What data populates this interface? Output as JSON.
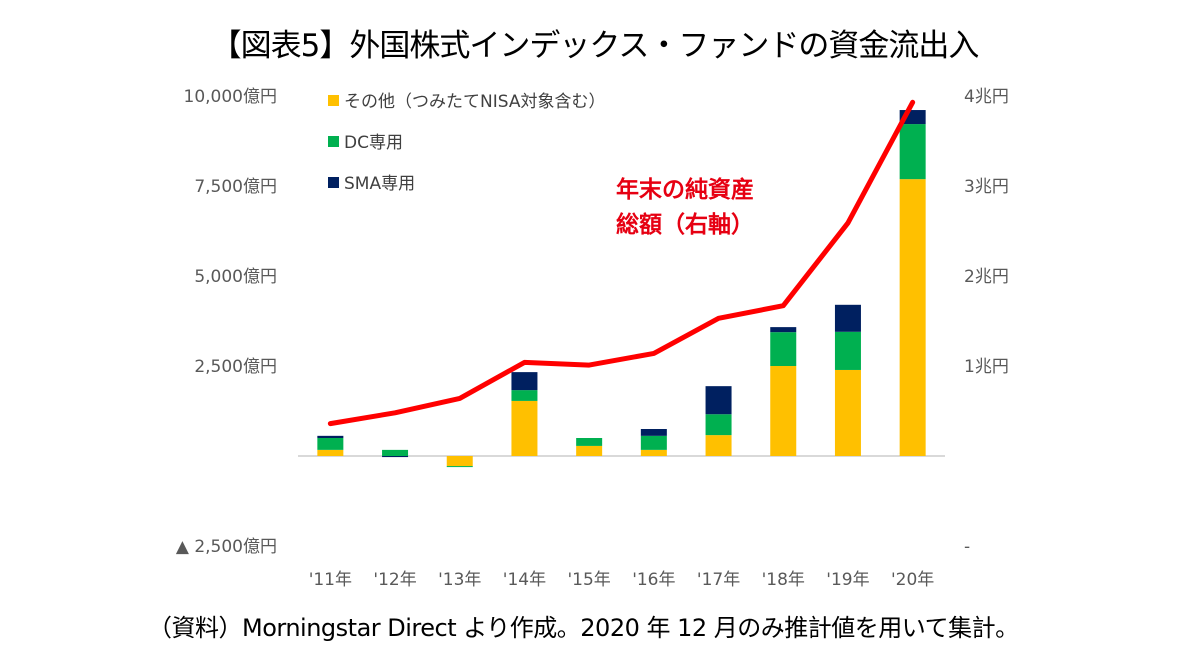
{
  "chart_data": {
    "type": "bar",
    "subtype": "stacked-bar-with-line",
    "title": "【図表5】外国株式インデックス・ファンドの資金流出入",
    "categories": [
      "'11年",
      "'12年",
      "'13年",
      "'14年",
      "'15年",
      "'16年",
      "'17年",
      "'18年",
      "'19年",
      "'20年"
    ],
    "series": [
      {
        "name": "その他（つみたてNISA対象含む）",
        "axis": "left",
        "color": "#ffc000",
        "unit": "億円",
        "values": [
          170,
          0,
          -280,
          1530,
          280,
          170,
          580,
          2500,
          2390,
          7690
        ]
      },
      {
        "name": "DC専用",
        "axis": "left",
        "color": "#00b050",
        "unit": "億円",
        "values": [
          330,
          170,
          -20,
          300,
          220,
          390,
          580,
          940,
          1060,
          1530
        ]
      },
      {
        "name": "SMA専用",
        "axis": "left",
        "color": "#002060",
        "unit": "億円",
        "values": [
          60,
          -30,
          0,
          500,
          0,
          190,
          780,
          140,
          750,
          390
        ]
      },
      {
        "name": "年末の純資産総額（右軸）",
        "type": "line",
        "axis": "right",
        "color": "#ff0000",
        "unit": "兆円",
        "values": [
          0.36,
          0.48,
          0.64,
          1.04,
          1.01,
          1.14,
          1.53,
          1.67,
          2.59,
          3.93
        ]
      }
    ],
    "left_axis": {
      "ylim": [
        -2500,
        10000
      ],
      "ticks": [
        10000,
        7500,
        5000,
        2500,
        0,
        -2500
      ],
      "tick_labels": [
        "10,000億円",
        "7,500億円",
        "5,000億円",
        "2,500億円",
        "",
        "▲ 2,500億円"
      ]
    },
    "right_axis": {
      "ylim": [
        -1,
        4
      ],
      "ticks": [
        4,
        3,
        2,
        1,
        0,
        -1
      ],
      "tick_labels": [
        "4兆円",
        "3兆円",
        "2兆円",
        "1兆円",
        "",
        "-"
      ]
    },
    "legend": {
      "placement": "top-left",
      "entries": [
        "その他（つみたてNISA対象含む）",
        "DC専用",
        "SMA専用"
      ]
    },
    "annotation": [
      "年末の純資産",
      "総額（右軸）"
    ],
    "grid": false,
    "xlabel": "",
    "ylabel": ""
  },
  "footer": "（資料）Morningstar Direct より作成。2020 年 12 月のみ推計値を用いて集計。"
}
